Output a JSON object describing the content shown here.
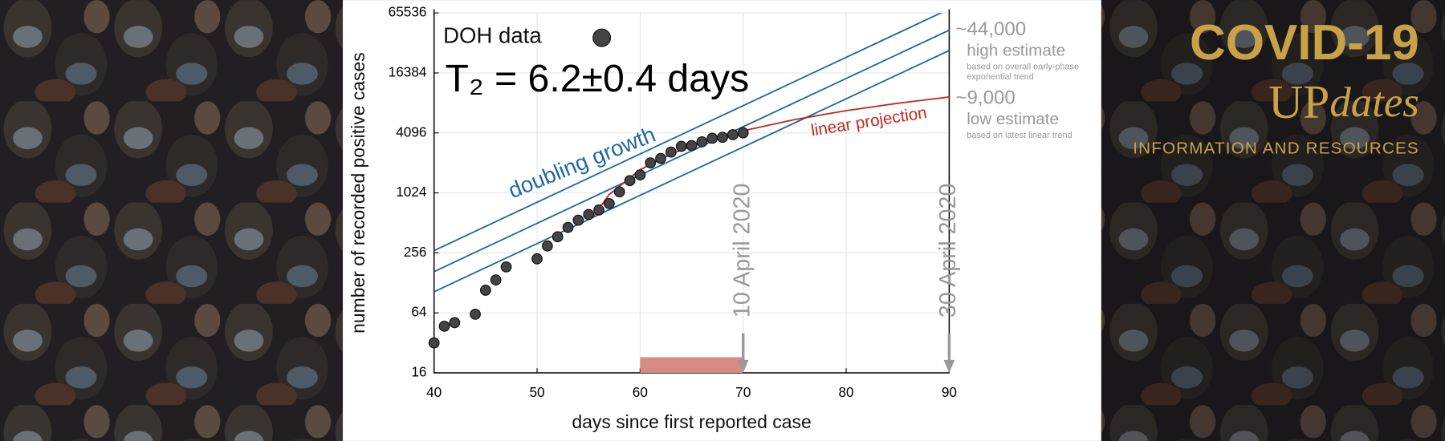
{
  "logo": {
    "line1": "COVID-19",
    "up": "UP",
    "dates": "dates",
    "tagline": "INFORMATION AND RESOURCES"
  },
  "chart_data": {
    "type": "scatter",
    "x_label": "days since first reported case",
    "y_label": "number of recorded positive cases",
    "xlim": [
      40,
      90
    ],
    "ylim": [
      16,
      65536
    ],
    "log_y": true,
    "grid": true,
    "xticks": [
      40,
      50,
      60,
      70,
      80,
      90
    ],
    "yticks": [
      16,
      64,
      256,
      1024,
      4096,
      16384,
      65536
    ],
    "series": [
      {
        "name": "DOH data",
        "color": "#444444",
        "x": [
          40,
          41,
          42,
          44,
          45,
          46,
          47,
          50,
          51,
          52,
          53,
          54,
          55,
          56,
          57,
          58,
          59,
          60,
          61,
          62,
          63,
          64,
          65,
          66,
          67,
          68,
          69,
          70
        ],
        "values": [
          32,
          47,
          51,
          62,
          108,
          137,
          185,
          223,
          300,
          372,
          461,
          545,
          621,
          690,
          800,
          1050,
          1360,
          1550,
          2050,
          2270,
          2630,
          3000,
          3060,
          3330,
          3620,
          3700,
          3930,
          4100
        ]
      }
    ],
    "fits": [
      {
        "color": "#1f68a0",
        "x": [
          40,
          90
        ],
        "values": [
          270,
          71700
        ]
      },
      {
        "color": "#1f68a0",
        "x": [
          40,
          90
        ],
        "values": [
          166,
          44000
        ]
      },
      {
        "color": "#1f68a0",
        "x": [
          40,
          90
        ],
        "values": [
          104,
          27500
        ]
      }
    ],
    "fit_label": "doubling growth",
    "doubling_time": "T₂ = 6.2±0.4 days",
    "projection": {
      "label": "linear projection",
      "color": "#c0281e",
      "x": [
        55.5,
        57,
        60,
        63,
        66,
        70,
        75,
        80,
        85,
        90
      ],
      "values": [
        602,
        985,
        1750,
        2515,
        3280,
        4300,
        5575,
        6850,
        8125,
        9400
      ]
    },
    "estimates": [
      {
        "value": 44000,
        "value_label": "~44,000",
        "title": "high estimate",
        "note": [
          "based on overall early-phase",
          "exponential trend"
        ]
      },
      {
        "value": 9000,
        "value_label": "~9,000",
        "title": "low estimate",
        "note": [
          "based on latest linear trend"
        ]
      }
    ],
    "markers": [
      {
        "x": 70,
        "label": "10 April 2020"
      },
      {
        "x": 90,
        "label": "30 April 2020"
      }
    ],
    "highlight": {
      "x": [
        60,
        70
      ],
      "color": "#d98a80"
    }
  }
}
